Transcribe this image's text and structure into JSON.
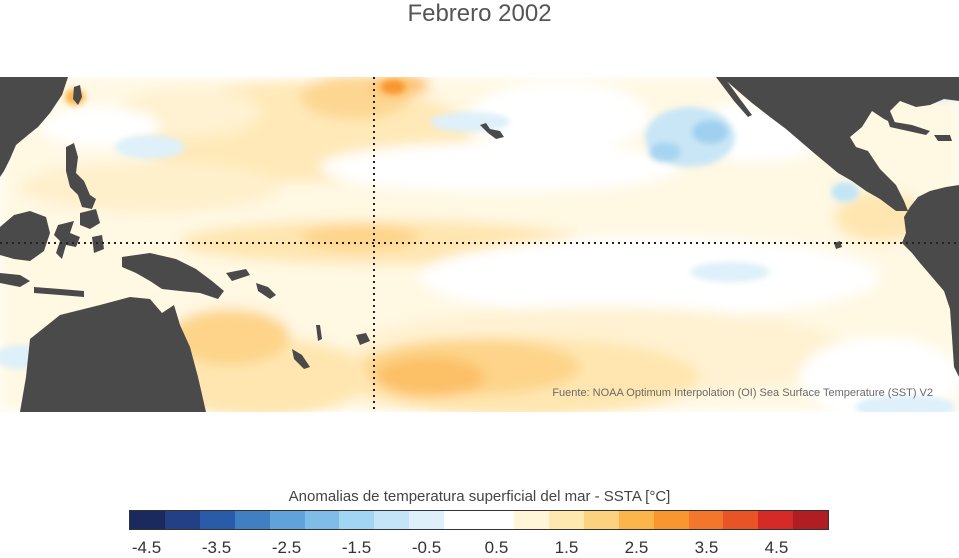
{
  "title": "Febrero 2002",
  "source": "Fuente: NOAA Optimum Interpolation (OI) Sea Surface Temperature (SST) V2",
  "legend": {
    "title": "Anomalias de temperatura superficial del mar - SSTA  [°C]",
    "ticks": [
      "-4.5",
      "-3.5",
      "-2.5",
      "-1.5",
      "-0.5",
      "0.5",
      "1.5",
      "2.5",
      "3.5",
      "4.5"
    ],
    "colors": [
      "#1a2a5e",
      "#233f86",
      "#2a5ba8",
      "#3f7fc2",
      "#5fa3da",
      "#7fbde8",
      "#a2d5f3",
      "#c3e5f7",
      "#def0f9",
      "#ffffff",
      "#ffffff",
      "#fff5d9",
      "#ffe8b0",
      "#fdd27e",
      "#fcb54a",
      "#f9962f",
      "#f4762a",
      "#e95426",
      "#d52a25",
      "#b01d22"
    ]
  },
  "map": {
    "land_color": "#4a4a4a",
    "ocean_color": "#ffffff",
    "reference_lines": "dotted"
  }
}
